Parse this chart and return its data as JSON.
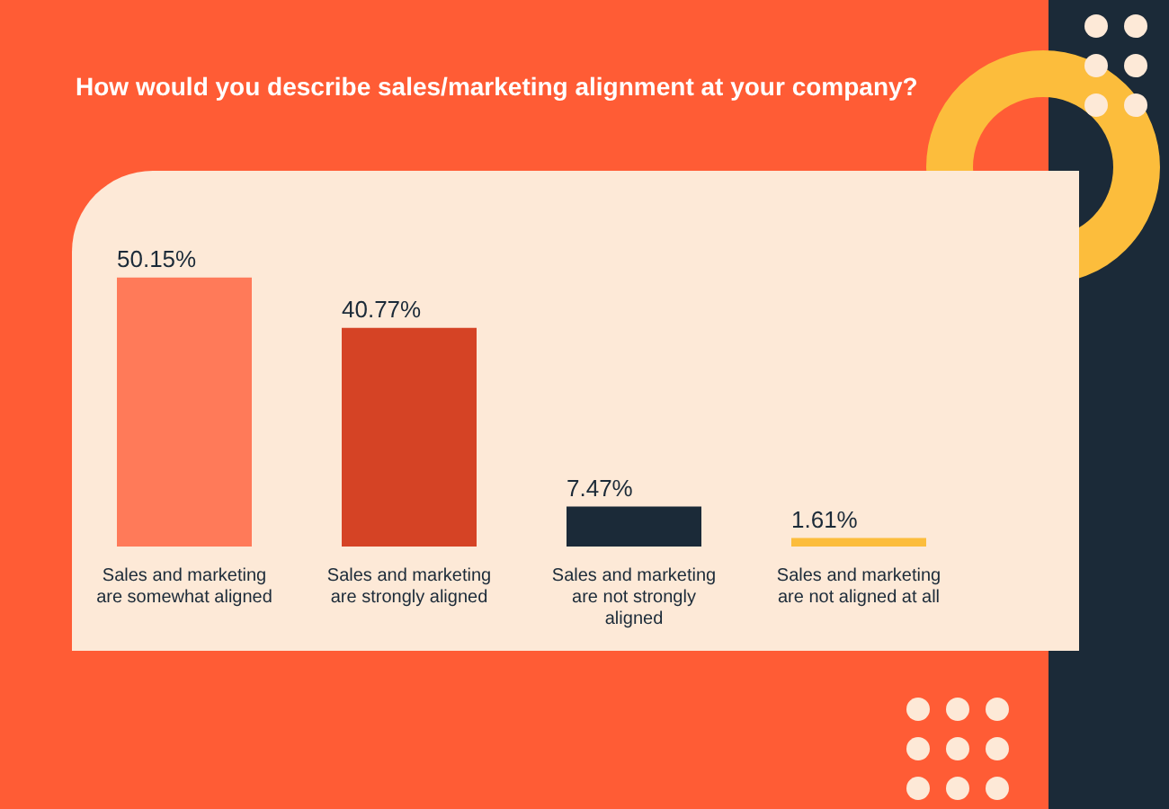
{
  "chart_data": {
    "type": "bar",
    "title": "How would you describe sales/marketing alignment at your company?",
    "categories": [
      "Sales and marketing are somewhat aligned",
      "Sales and marketing are strongly aligned",
      "Sales and marketing are not strongly aligned",
      "Sales and marketing are not aligned at all"
    ],
    "values": [
      50.15,
      40.77,
      7.47,
      1.61
    ],
    "value_labels": [
      "50.15%",
      "40.77%",
      "7.47%",
      "1.61%"
    ],
    "colors": [
      "#ff7a59",
      "#d54325",
      "#1b2a38",
      "#fcbd3c"
    ],
    "grid": false,
    "legend": false,
    "tick_labels": "x"
  }
}
